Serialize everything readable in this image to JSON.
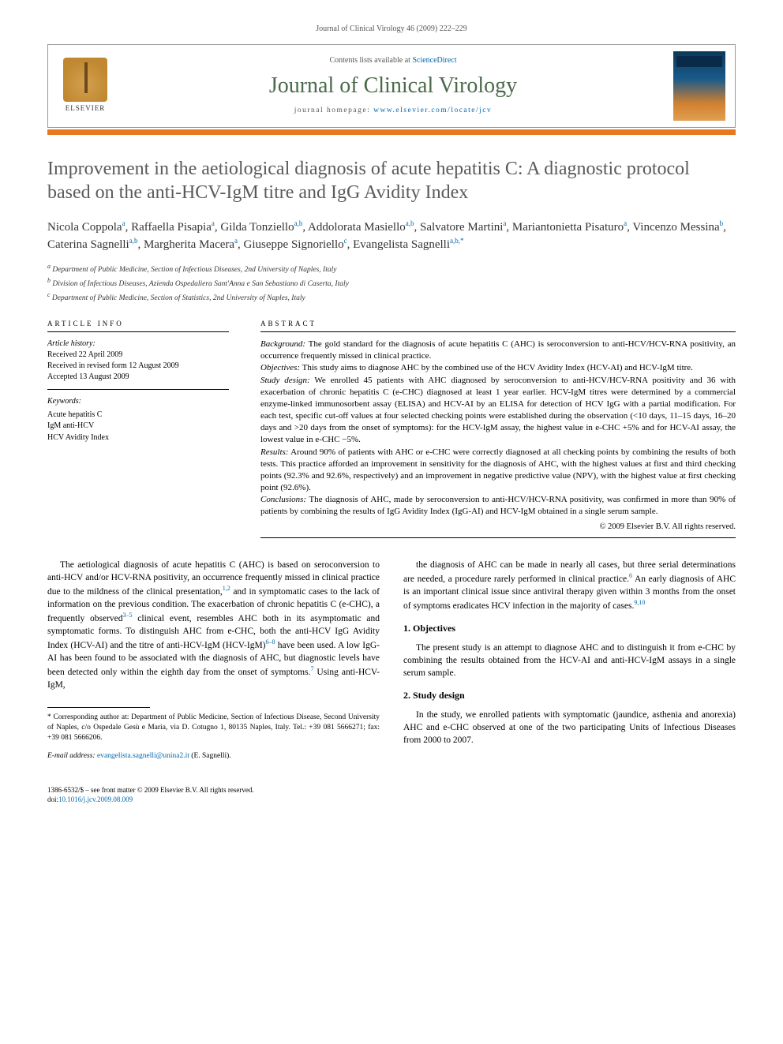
{
  "running_header": "Journal of Clinical Virology 46 (2009) 222–229",
  "header": {
    "contents_prefix": "Contents lists available at ",
    "contents_link": "ScienceDirect",
    "journal_name": "Journal of Clinical Virology",
    "homepage_prefix": "journal homepage: ",
    "homepage_url": "www.elsevier.com/locate/jcv",
    "publisher": "ELSEVIER"
  },
  "title": "Improvement in the aetiological diagnosis of acute hepatitis C: A diagnostic protocol based on the anti-HCV-IgM titre and IgG Avidity Index",
  "authors_html": "Nicola Coppola<sup>a</sup>, Raffaella Pisapia<sup>a</sup>, Gilda Tonziello<sup>a,b</sup>, Addolorata Masiello<sup>a,b</sup>, Salvatore Martini<sup>a</sup>, Mariantonietta Pisaturo<sup>a</sup>, Vincenzo Messina<sup>b</sup>, Caterina Sagnelli<sup>a,b</sup>, Margherita Macera<sup>a</sup>, Giuseppe Signoriello<sup>c</sup>, Evangelista Sagnelli<sup>a,b,*</sup>",
  "affiliations": {
    "a": "Department of Public Medicine, Section of Infectious Diseases, 2nd University of Naples, Italy",
    "b": "Division of Infectious Diseases, Azienda Ospedaliera Sant'Anna e San Sebastiano di Caserta, Italy",
    "c": "Department of Public Medicine, Section of Statistics, 2nd University of Naples, Italy"
  },
  "article_info": {
    "heading": "ARTICLE INFO",
    "history_label": "Article history:",
    "received": "Received 22 April 2009",
    "revised": "Received in revised form 12 August 2009",
    "accepted": "Accepted 13 August 2009",
    "keywords_label": "Keywords:",
    "keywords": [
      "Acute hepatitis C",
      "IgM anti-HCV",
      "HCV Avidity Index"
    ]
  },
  "abstract": {
    "heading": "ABSTRACT",
    "background_label": "Background:",
    "background": "The gold standard for the diagnosis of acute hepatitis C (AHC) is seroconversion to anti-HCV/HCV-RNA positivity, an occurrence frequently missed in clinical practice.",
    "objectives_label": "Objectives:",
    "objectives": "This study aims to diagnose AHC by the combined use of the HCV Avidity Index (HCV-AI) and HCV-IgM titre.",
    "design_label": "Study design:",
    "design": "We enrolled 45 patients with AHC diagnosed by seroconversion to anti-HCV/HCV-RNA positivity and 36 with exacerbation of chronic hepatitis C (e-CHC) diagnosed at least 1 year earlier. HCV-IgM titres were determined by a commercial enzyme-linked immunosorbent assay (ELISA) and HCV-AI by an ELISA for detection of HCV IgG with a partial modification. For each test, specific cut-off values at four selected checking points were established during the observation (<10 days, 11–15 days, 16–20 days and >20 days from the onset of symptoms): for the HCV-IgM assay, the highest value in e-CHC +5% and for HCV-AI assay, the lowest value in e-CHC −5%.",
    "results_label": "Results:",
    "results": "Around 90% of patients with AHC or e-CHC were correctly diagnosed at all checking points by combining the results of both tests. This practice afforded an improvement in sensitivity for the diagnosis of AHC, with the highest values at first and third checking points (92.3% and 92.6%, respectively) and an improvement in negative predictive value (NPV), with the highest value at first checking point (92.6%).",
    "conclusions_label": "Conclusions:",
    "conclusions": "The diagnosis of AHC, made by seroconversion to anti-HCV/HCV-RNA positivity, was confirmed in more than 90% of patients by combining the results of IgG Avidity Index (IgG-AI) and HCV-IgM obtained in a single serum sample.",
    "copyright": "© 2009 Elsevier B.V. All rights reserved."
  },
  "body": {
    "intro": "The aetiological diagnosis of acute hepatitis C (AHC) is based on seroconversion to anti-HCV and/or HCV-RNA positivity, an occurrence frequently missed in clinical practice due to the mildness of the clinical presentation,1,2 and in symptomatic cases to the lack of information on the previous condition. The exacerbation of chronic hepatitis C (e-CHC), a frequently observed3–5 clinical event, resembles AHC both in its asymptomatic and symptomatic forms. To distinguish AHC from e-CHC, both the anti-HCV IgG Avidity Index (HCV-AI) and the titre of anti-HCV-IgM (HCV-IgM)6–8 have been used. A low IgG-AI has been found to be associated with the diagnosis of AHC, but diagnostic levels have been detected only within the eighth day from the onset of symptoms.7 Using anti-HCV-IgM,",
    "intro_cont": "the diagnosis of AHC can be made in nearly all cases, but three serial determinations are needed, a procedure rarely performed in clinical practice.6 An early diagnosis of AHC is an important clinical issue since antiviral therapy given within 3 months from the onset of symptoms eradicates HCV infection in the majority of cases.9,10",
    "objectives_h": "1.  Objectives",
    "objectives_p": "The present study is an attempt to diagnose AHC and to distinguish it from e-CHC by combining the results obtained from the HCV-AI and anti-HCV-IgM assays in a single serum sample.",
    "design_h": "2.  Study design",
    "design_p": "In the study, we enrolled patients with symptomatic (jaundice, asthenia and anorexia) AHC and e-CHC observed at one of the two participating Units of Infectious Diseases from 2000 to 2007."
  },
  "footnote": {
    "corr": "* Corresponding author at: Department of Public Medicine, Section of Infectious Disease, Second University of Naples, c/o Ospedale Gesù e Maria, via D. Cotugno 1, 80135 Naples, Italy. Tel.: +39 081 5666271; fax: +39 081 5666206.",
    "email_label": "E-mail address:",
    "email": "evangelista.sagnelli@unina2.it",
    "email_who": "(E. Sagnelli)."
  },
  "footer": {
    "line1": "1386-6532/$ – see front matter © 2009 Elsevier B.V. All rights reserved.",
    "doi_label": "doi:",
    "doi": "10.1016/j.jcv.2009.08.009"
  },
  "colors": {
    "orange": "#e87722",
    "journal_green": "#4a6a4a",
    "link": "#0066aa",
    "title_gray": "#5a5a5a"
  }
}
